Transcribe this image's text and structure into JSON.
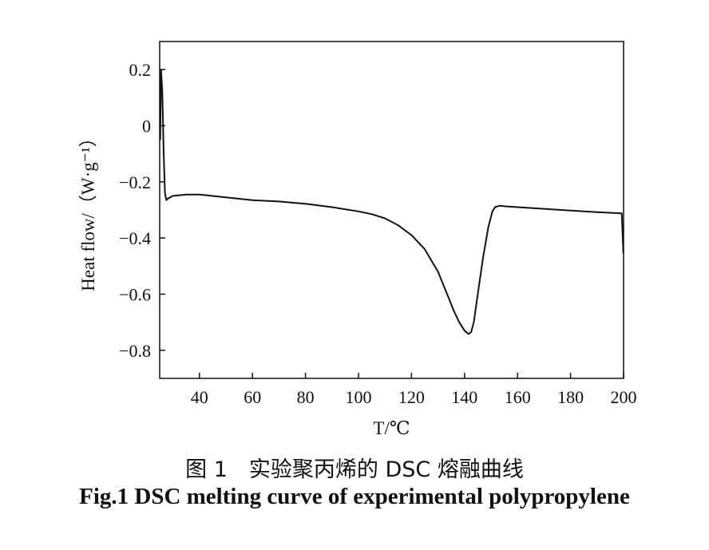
{
  "chart_data": {
    "type": "line",
    "xlabel": "T/℃",
    "ylabel": "Heat flow/（W·g⁻¹）",
    "xlim": [
      25,
      200
    ],
    "ylim": [
      -0.9,
      0.3
    ],
    "x_ticks": [
      40,
      60,
      80,
      100,
      120,
      140,
      160,
      180,
      200
    ],
    "y_ticks": [
      0.2,
      0,
      -0.2,
      -0.4,
      -0.6,
      -0.8
    ],
    "x_tick_labels": [
      "40",
      "60",
      "80",
      "100",
      "120",
      "140",
      "160",
      "180",
      "200"
    ],
    "y_tick_labels": [
      "0.2",
      "0",
      "−0.2",
      "−0.4",
      "−0.6",
      "−0.8"
    ],
    "grid": false,
    "series": [
      {
        "x": [
          25.2,
          25.5,
          26.0,
          26.5,
          27.0,
          27.5,
          28.0,
          30,
          35,
          40,
          50,
          60,
          70,
          80,
          90,
          100,
          105,
          110,
          115,
          120,
          125,
          130,
          133,
          136,
          138,
          140,
          141.5,
          142.5,
          143.5,
          145,
          147,
          149,
          150.5,
          151.5,
          152.5,
          153.5,
          155,
          160,
          170,
          180,
          190,
          199.3,
          199.6,
          199.9
        ],
        "y": [
          -0.05,
          0.2,
          0.12,
          -0.1,
          -0.24,
          -0.265,
          -0.26,
          -0.25,
          -0.245,
          -0.245,
          -0.255,
          -0.265,
          -0.27,
          -0.278,
          -0.29,
          -0.305,
          -0.315,
          -0.33,
          -0.355,
          -0.39,
          -0.44,
          -0.52,
          -0.59,
          -0.66,
          -0.7,
          -0.73,
          -0.742,
          -0.735,
          -0.7,
          -0.6,
          -0.47,
          -0.36,
          -0.305,
          -0.29,
          -0.287,
          -0.285,
          -0.287,
          -0.29,
          -0.296,
          -0.302,
          -0.308,
          -0.312,
          -0.38,
          -0.455
        ]
      }
    ]
  },
  "caption": {
    "chinese": "图 1　实验聚丙烯的 DSC 熔融曲线",
    "english": "Fig.1 DSC melting curve of experimental polypropylene"
  }
}
